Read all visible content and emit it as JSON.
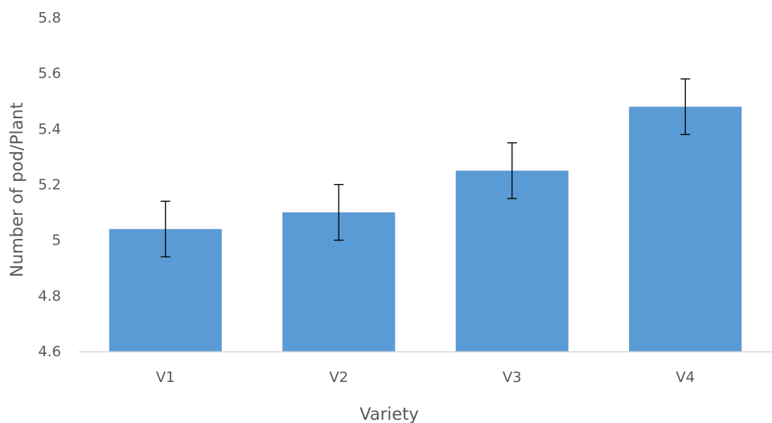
{
  "chart_data": {
    "type": "bar",
    "title": "",
    "xlabel": "Variety",
    "ylabel": "Number of pod/Plant",
    "categories": [
      "V1",
      "V2",
      "V3",
      "V4"
    ],
    "values": [
      5.04,
      5.1,
      5.25,
      5.48
    ],
    "error": [
      0.1,
      0.1,
      0.1,
      0.1
    ],
    "ylim": [
      4.6,
      5.8
    ],
    "yticks": [
      4.6,
      4.8,
      5,
      5.2,
      5.4,
      5.6,
      5.8
    ],
    "ytick_labels": [
      "4.6",
      "4.8",
      "5",
      "5.2",
      "5.4",
      "5.6",
      "5.8"
    ],
    "grid": false,
    "legend": "none",
    "colors": {
      "bar": "#5B9BD5",
      "axis": "#D9D9D9",
      "error_bar": "#000000",
      "text": "#595959"
    }
  }
}
